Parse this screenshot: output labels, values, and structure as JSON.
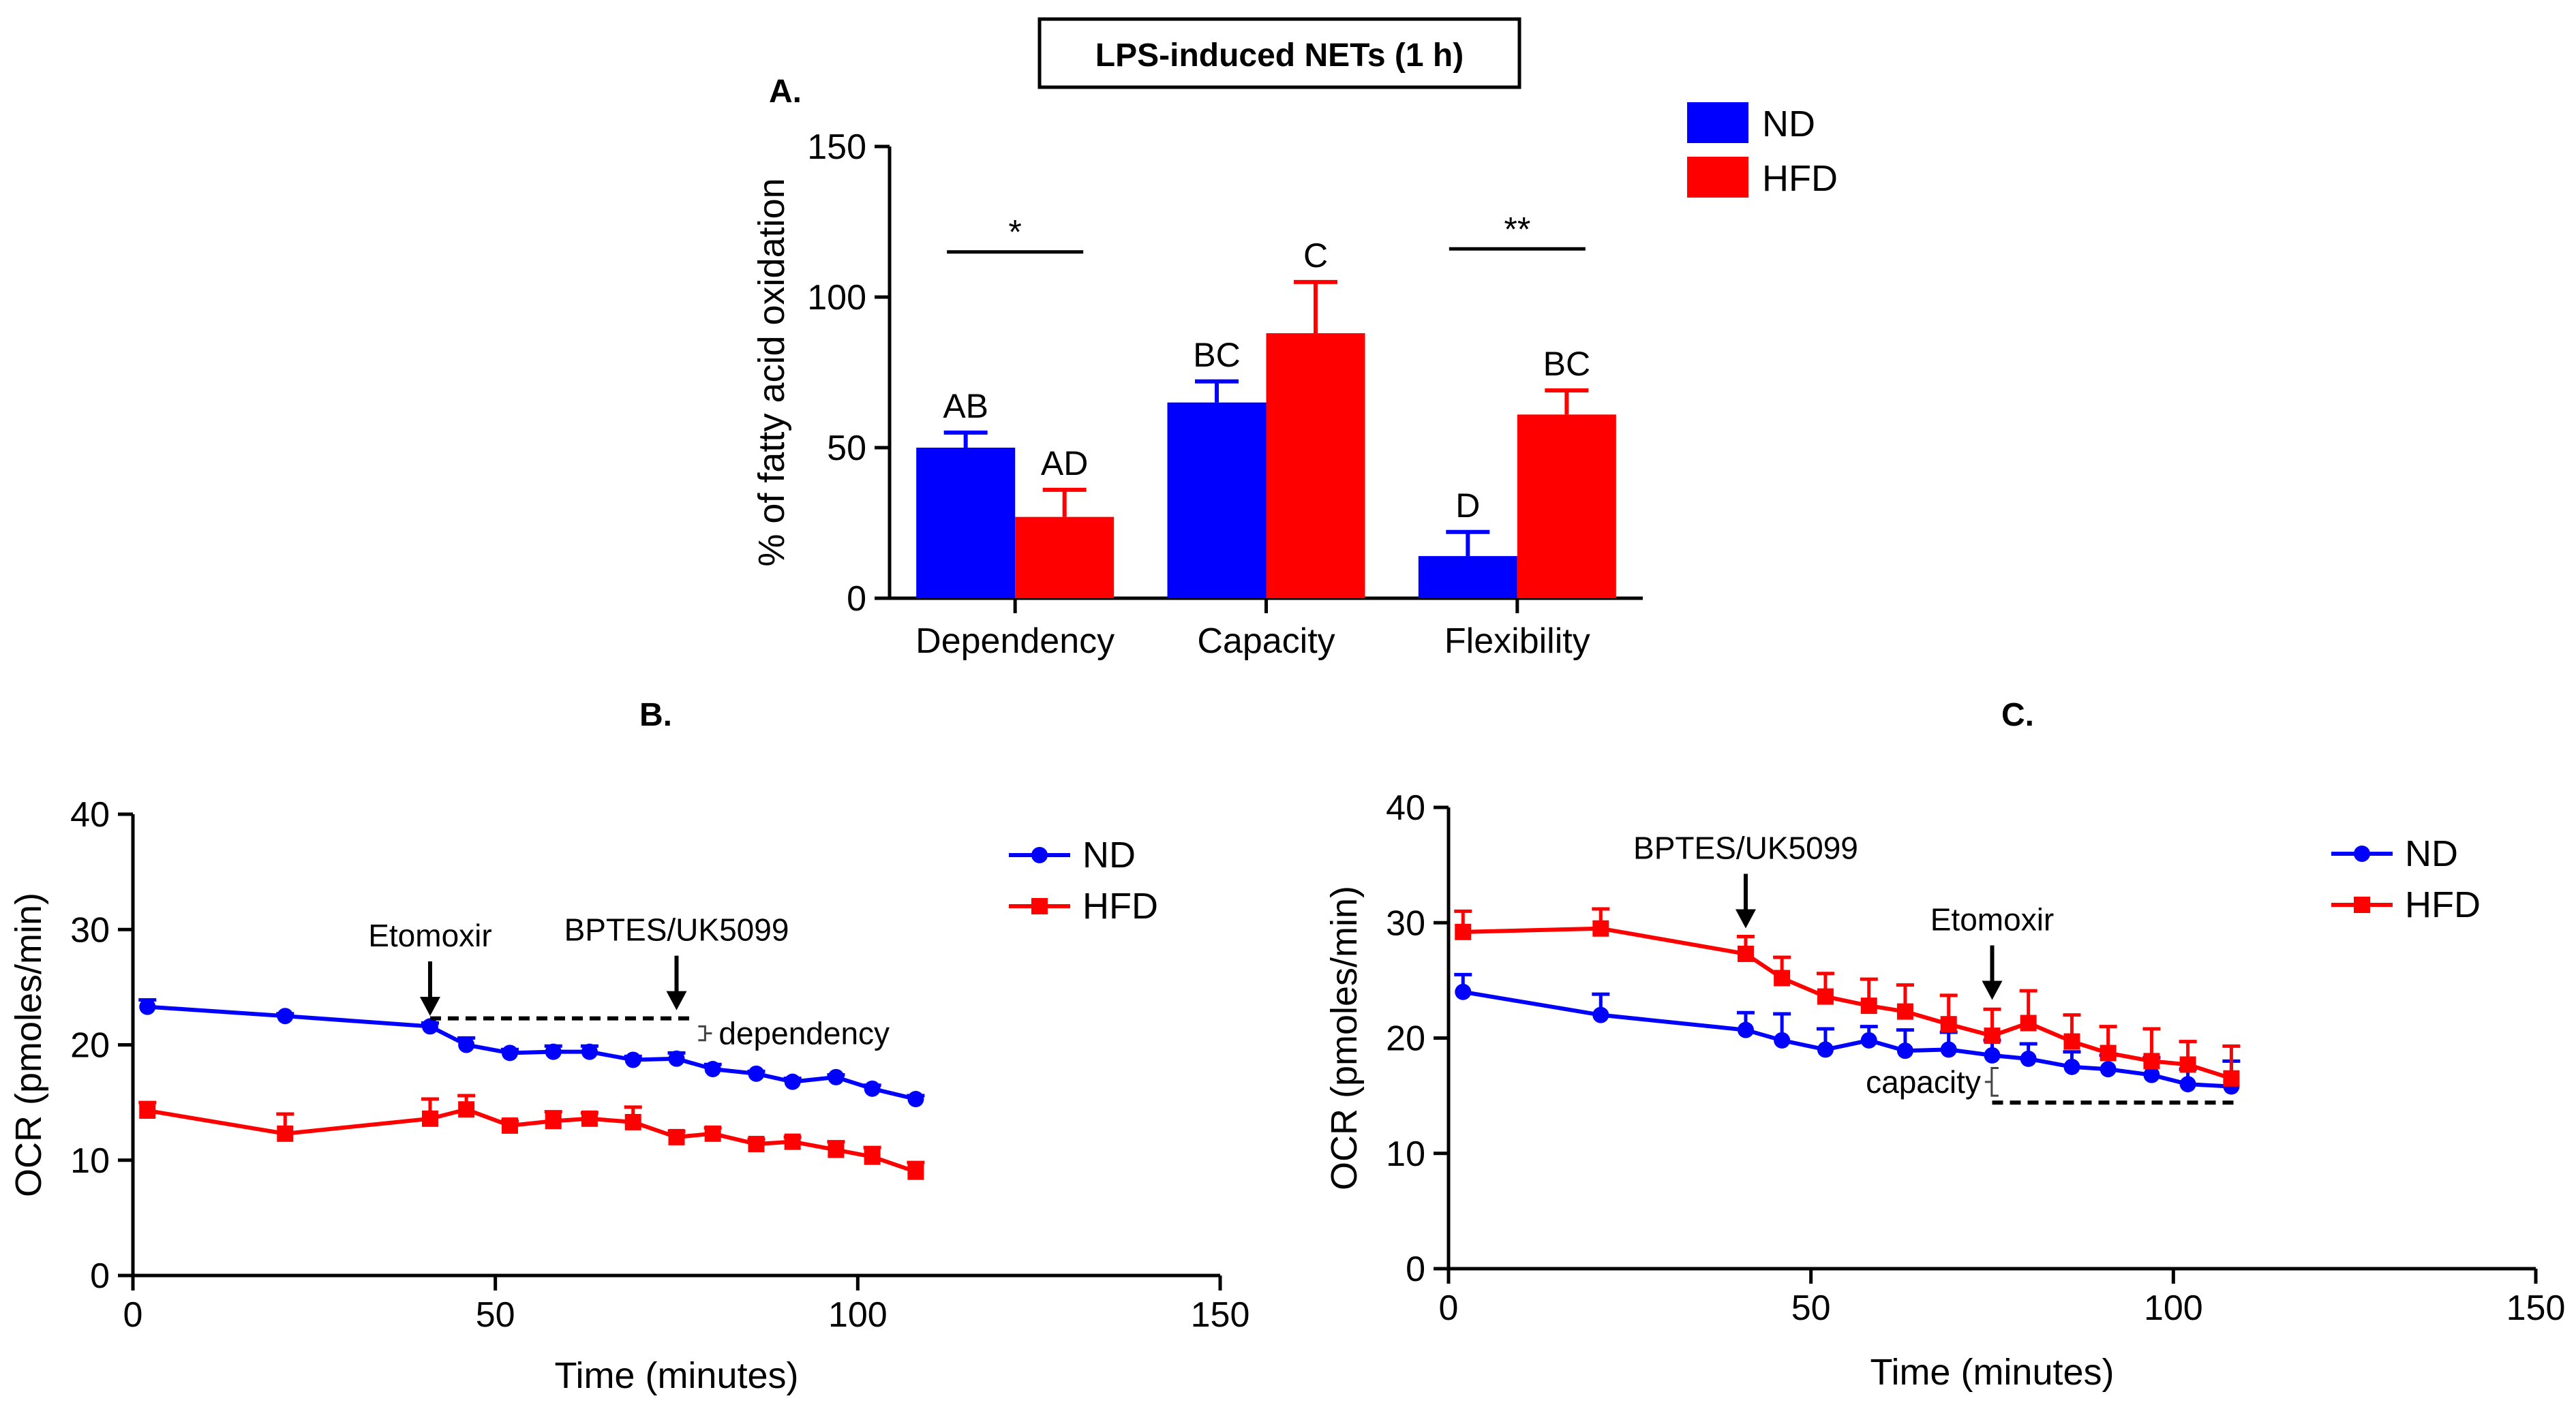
{
  "figure_title": "LPS-induced NETs (1 h)",
  "colors": {
    "ND": "#0000ff",
    "HFD": "#ff0000",
    "ink": "#000000"
  },
  "chart_data": [
    {
      "id": "A",
      "panel_label": "A.",
      "type": "bar",
      "ylabel": "% of fatty acid oxidation",
      "xlabel": "",
      "ylim": [
        0,
        150
      ],
      "yticks": [
        "0",
        "50",
        "100",
        "150"
      ],
      "categories": [
        "Dependency",
        "Capacity",
        "Flexibility"
      ],
      "legend": [
        "ND",
        "HFD"
      ],
      "legend_position": "top-right",
      "series": [
        {
          "name": "ND",
          "values": [
            50,
            65,
            14
          ],
          "errors": [
            5,
            7,
            8
          ],
          "labels": [
            "AB",
            "BC",
            "D"
          ]
        },
        {
          "name": "HFD",
          "values": [
            27,
            88,
            61
          ],
          "errors": [
            9,
            17,
            8
          ],
          "labels": [
            "AD",
            "C",
            "BC"
          ]
        }
      ],
      "significance": [
        {
          "category": "Dependency",
          "label": "*",
          "y": 115
        },
        {
          "category": "Flexibility",
          "label": "**",
          "y": 116
        }
      ]
    },
    {
      "id": "B",
      "panel_label": "B.",
      "type": "line",
      "ylabel": "OCR (pmoles/min)",
      "xlabel": "Time (minutes)",
      "xlim": [
        0,
        150
      ],
      "ylim": [
        0,
        40
      ],
      "xticks": [
        "0",
        "50",
        "100",
        "150"
      ],
      "yticks": [
        "0",
        "10",
        "20",
        "30",
        "40"
      ],
      "legend": [
        "ND",
        "HFD"
      ],
      "legend_position": "top-right",
      "series": [
        {
          "name": "ND",
          "marker": "circle",
          "x": [
            2,
            21,
            41,
            46,
            52,
            58,
            63,
            69,
            75,
            80,
            86,
            91,
            97,
            102,
            108
          ],
          "y": [
            23.3,
            22.5,
            21.6,
            20.0,
            19.3,
            19.4,
            19.4,
            18.7,
            18.8,
            17.9,
            17.5,
            16.8,
            17.2,
            16.2,
            15.3
          ],
          "err": [
            0.6,
            0.2,
            0.3,
            0.6,
            0.3,
            0.5,
            0.5,
            0.3,
            0.5,
            0.4,
            0.2,
            0.3,
            0.2,
            0.3,
            0.3
          ]
        },
        {
          "name": "HFD",
          "marker": "square",
          "x": [
            2,
            21,
            41,
            46,
            52,
            58,
            63,
            69,
            75,
            80,
            86,
            91,
            97,
            102,
            108
          ],
          "y": [
            14.3,
            12.3,
            13.6,
            14.4,
            13.0,
            13.4,
            13.6,
            13.3,
            12.0,
            12.3,
            11.4,
            11.6,
            10.9,
            10.3,
            9.0
          ],
          "err": [
            0.7,
            1.7,
            1.7,
            1.2,
            0.4,
            0.8,
            0.5,
            1.3,
            0.5,
            0.5,
            0.4,
            0.4,
            0.7,
            0.8,
            0.8
          ]
        }
      ],
      "annotations": [
        {
          "type": "arrow",
          "text": "Etomoxir",
          "x": 41,
          "y": 21.8
        },
        {
          "type": "arrow",
          "text": "BPTES/UK5099",
          "x": 75,
          "y": 22.3
        },
        {
          "type": "dashed",
          "x0": 41,
          "x1": 77,
          "y": 22.3
        },
        {
          "type": "bracket",
          "text": "dependency",
          "x": 78,
          "y0": 21.6,
          "y1": 20.4
        }
      ]
    },
    {
      "id": "C",
      "panel_label": "C.",
      "type": "line",
      "ylabel": "OCR (pmoles/min)",
      "xlabel": "Time (minutes)",
      "xlim": [
        0,
        150
      ],
      "ylim": [
        0,
        40
      ],
      "xticks": [
        "0",
        "50",
        "100",
        "150"
      ],
      "yticks": [
        "0",
        "10",
        "20",
        "30",
        "40"
      ],
      "legend": [
        "ND",
        "HFD"
      ],
      "legend_position": "top-right",
      "series": [
        {
          "name": "ND",
          "marker": "circle",
          "x": [
            2,
            21,
            41,
            46,
            52,
            58,
            63,
            69,
            75,
            80,
            86,
            91,
            97,
            102,
            108
          ],
          "y": [
            24.0,
            22.0,
            20.7,
            19.8,
            19.0,
            19.8,
            18.9,
            19.0,
            18.5,
            18.2,
            17.5,
            17.3,
            16.8,
            16.0,
            15.8
          ],
          "err": [
            1.5,
            1.8,
            1.5,
            2.3,
            1.8,
            1.2,
            1.8,
            1.5,
            1.3,
            1.3,
            1.3,
            1.2,
            1.5,
            1.3,
            2.2
          ]
        },
        {
          "name": "HFD",
          "marker": "square",
          "x": [
            2,
            21,
            41,
            46,
            52,
            58,
            63,
            69,
            75,
            80,
            86,
            91,
            97,
            102,
            108
          ],
          "y": [
            29.2,
            29.5,
            27.3,
            25.2,
            23.6,
            22.8,
            22.3,
            21.2,
            20.2,
            21.3,
            19.7,
            18.7,
            18.0,
            17.7,
            16.5
          ],
          "err": [
            1.8,
            1.7,
            1.5,
            1.8,
            2.0,
            2.3,
            2.3,
            2.5,
            2.3,
            2.8,
            2.3,
            2.3,
            2.8,
            2.0,
            2.8
          ]
        }
      ],
      "annotations": [
        {
          "type": "arrow",
          "text": "BPTES/UK5099",
          "x": 41,
          "y": 28.8
        },
        {
          "type": "arrow",
          "text": "Etomoxir",
          "x": 75,
          "y": 22.6
        },
        {
          "type": "dashed",
          "x0": 75,
          "x1": 109,
          "y": 14.4
        },
        {
          "type": "bracket",
          "text": "capacity",
          "x": 74,
          "y0": 17.4,
          "y1": 15.0
        }
      ]
    }
  ]
}
